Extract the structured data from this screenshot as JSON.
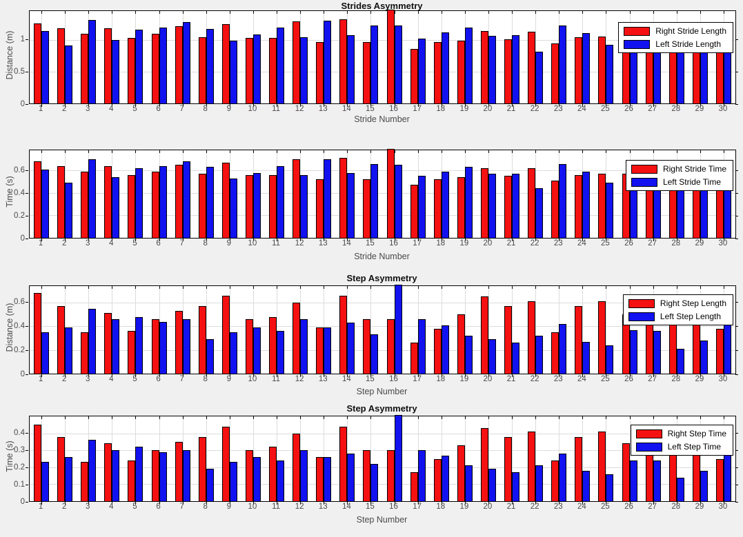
{
  "figure": {
    "background": "#f0f0f0"
  },
  "colors": {
    "right": "#f51111",
    "left": "#1212f0",
    "grid": "#dcdcdc",
    "plot_bg": "#ffffff"
  },
  "chart_data": [
    {
      "type": "bar",
      "title": "Strides Asymmetry",
      "xlabel": "Stride Number",
      "ylabel": "Distance (m)",
      "grid": true,
      "legend_position": "top-right",
      "ylim": [
        0,
        1.45
      ],
      "yticks": [
        0,
        0.5,
        1
      ],
      "categories": [
        1,
        2,
        3,
        4,
        5,
        6,
        7,
        8,
        9,
        10,
        11,
        12,
        13,
        14,
        15,
        16,
        17,
        18,
        19,
        20,
        21,
        22,
        23,
        24,
        25,
        26,
        27,
        28,
        29,
        30
      ],
      "series": [
        {
          "name": "Right Stride Length",
          "color": "#f51111",
          "values": [
            1.25,
            1.18,
            1.09,
            1.18,
            1.03,
            1.09,
            1.21,
            1.04,
            1.24,
            1.03,
            1.03,
            1.29,
            0.96,
            1.32,
            0.96,
            1.5,
            0.86,
            0.96,
            0.99,
            1.14,
            1.01,
            1.13,
            0.94,
            1.04,
            1.05,
            1.05,
            0.98,
            0.97,
            0.98,
            0.98
          ]
        },
        {
          "name": "Left Stride Length",
          "color": "#1212f0",
          "values": [
            1.14,
            0.91,
            1.31,
            1.0,
            1.16,
            1.19,
            1.28,
            1.17,
            0.99,
            1.08,
            1.19,
            1.04,
            1.3,
            1.07,
            1.22,
            1.22,
            1.02,
            1.11,
            1.19,
            1.06,
            1.07,
            0.81,
            1.22,
            1.1,
            0.92,
            0.97,
            0.98,
            0.97,
            0.8,
            0.98
          ]
        }
      ]
    },
    {
      "type": "bar",
      "title": "",
      "xlabel": "Stride Number",
      "ylabel": "Time (s)",
      "grid": true,
      "legend_position": "top-right",
      "ylim": [
        0,
        0.78
      ],
      "yticks": [
        0,
        0.2,
        0.4,
        0.6
      ],
      "categories": [
        1,
        2,
        3,
        4,
        5,
        6,
        7,
        8,
        9,
        10,
        11,
        12,
        13,
        14,
        15,
        16,
        17,
        18,
        19,
        20,
        21,
        22,
        23,
        24,
        25,
        26,
        27,
        28,
        29,
        30
      ],
      "series": [
        {
          "name": "Right Stride Time",
          "color": "#f51111",
          "values": [
            0.68,
            0.64,
            0.59,
            0.64,
            0.56,
            0.59,
            0.65,
            0.57,
            0.67,
            0.56,
            0.56,
            0.7,
            0.52,
            0.71,
            0.52,
            0.8,
            0.47,
            0.52,
            0.54,
            0.62,
            0.55,
            0.62,
            0.51,
            0.56,
            0.57,
            0.57,
            0.54,
            0.54,
            0.54,
            0.54
          ]
        },
        {
          "name": "Left Stride Time",
          "color": "#1212f0",
          "values": [
            0.61,
            0.49,
            0.7,
            0.54,
            0.62,
            0.64,
            0.68,
            0.63,
            0.53,
            0.58,
            0.64,
            0.56,
            0.7,
            0.58,
            0.66,
            0.65,
            0.55,
            0.59,
            0.63,
            0.57,
            0.57,
            0.44,
            0.66,
            0.59,
            0.49,
            0.6,
            0.54,
            0.54,
            0.43,
            0.54
          ]
        }
      ]
    },
    {
      "type": "bar",
      "title": "Step Asymmetry",
      "xlabel": "Step Number",
      "ylabel": "Distance (m)",
      "grid": true,
      "legend_position": "top-right",
      "ylim": [
        0,
        0.74
      ],
      "yticks": [
        0,
        0.2,
        0.4,
        0.6
      ],
      "categories": [
        1,
        2,
        3,
        4,
        5,
        6,
        7,
        8,
        9,
        10,
        11,
        12,
        13,
        14,
        15,
        16,
        17,
        18,
        19,
        20,
        21,
        22,
        23,
        24,
        25,
        26,
        27,
        28,
        29,
        30
      ],
      "series": [
        {
          "name": "Right Step Length",
          "color": "#f51111",
          "values": [
            0.68,
            0.57,
            0.35,
            0.51,
            0.36,
            0.46,
            0.53,
            0.57,
            0.66,
            0.46,
            0.48,
            0.6,
            0.39,
            0.66,
            0.46,
            0.46,
            0.26,
            0.38,
            0.5,
            0.65,
            0.57,
            0.61,
            0.35,
            0.57,
            0.61,
            0.5,
            0.48,
            0.48,
            0.48,
            0.38
          ]
        },
        {
          "name": "Left Step Length",
          "color": "#1212f0",
          "values": [
            0.35,
            0.39,
            0.55,
            0.46,
            0.48,
            0.44,
            0.46,
            0.29,
            0.35,
            0.39,
            0.36,
            0.46,
            0.39,
            0.43,
            0.33,
            0.78,
            0.46,
            0.41,
            0.32,
            0.29,
            0.26,
            0.32,
            0.42,
            0.27,
            0.24,
            0.37,
            0.36,
            0.21,
            0.28,
            0.5
          ]
        }
      ]
    },
    {
      "type": "bar",
      "title": "Step Asymmetry",
      "xlabel": "Step Number",
      "ylabel": "Time (s)",
      "grid": true,
      "legend_position": "top-right",
      "ylim": [
        0,
        0.5
      ],
      "yticks": [
        0,
        0.1,
        0.2,
        0.3,
        0.4
      ],
      "categories": [
        1,
        2,
        3,
        4,
        5,
        6,
        7,
        8,
        9,
        10,
        11,
        12,
        13,
        14,
        15,
        16,
        17,
        18,
        19,
        20,
        21,
        22,
        23,
        24,
        25,
        26,
        27,
        28,
        29,
        30
      ],
      "series": [
        {
          "name": "Right Step Time",
          "color": "#f51111",
          "values": [
            0.45,
            0.38,
            0.23,
            0.34,
            0.24,
            0.3,
            0.35,
            0.38,
            0.44,
            0.3,
            0.32,
            0.4,
            0.26,
            0.44,
            0.3,
            0.3,
            0.17,
            0.25,
            0.33,
            0.43,
            0.38,
            0.41,
            0.24,
            0.38,
            0.41,
            0.34,
            0.32,
            0.32,
            0.32,
            0.25
          ]
        },
        {
          "name": "Left Step Time",
          "color": "#1212f0",
          "values": [
            0.23,
            0.26,
            0.36,
            0.3,
            0.32,
            0.29,
            0.3,
            0.19,
            0.23,
            0.26,
            0.24,
            0.3,
            0.26,
            0.28,
            0.22,
            0.52,
            0.3,
            0.27,
            0.21,
            0.19,
            0.17,
            0.21,
            0.28,
            0.18,
            0.16,
            0.24,
            0.24,
            0.14,
            0.18,
            0.32
          ]
        }
      ]
    }
  ]
}
